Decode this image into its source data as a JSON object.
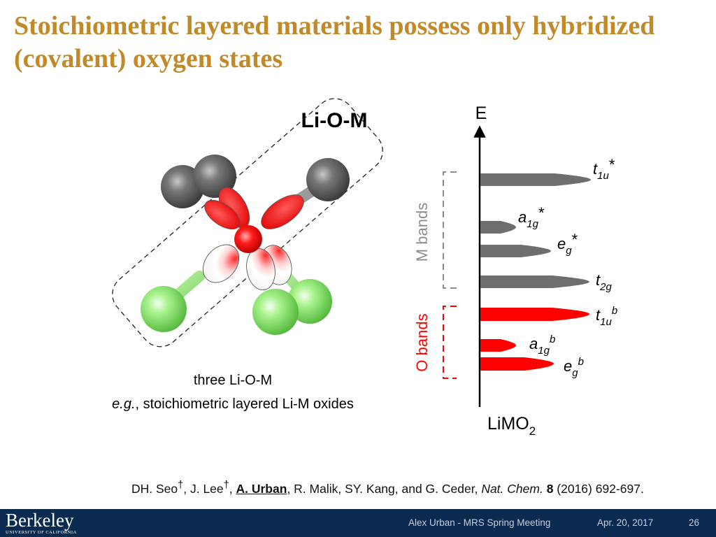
{
  "slide": {
    "title": "Stoichiometric layered materials possess only hybridized (covalent) oxygen states",
    "page_number": "26"
  },
  "structure": {
    "heading": "Li-O-M",
    "caption_line1": "three Li-O-M",
    "caption_line2_em": "e.g.",
    "caption_line2_rest": ", stoichiometric layered Li-M oxides"
  },
  "energy_diagram": {
    "axis_label": "E",
    "compound_base": "LiMO",
    "compound_sub": "2",
    "m_bands_label": "M bands",
    "o_bands_label": "O bands",
    "m_band_color": "#6e6e6e",
    "o_band_color": "#ff0000",
    "levels": [
      {
        "sym": "t",
        "sub": "1u",
        "sup": "*",
        "group": "M"
      },
      {
        "sym": "a",
        "sub": "1g",
        "sup": "*",
        "group": "M"
      },
      {
        "sym": "e",
        "sub": "g",
        "sup": "*",
        "group": "M"
      },
      {
        "sym": "t",
        "sub": "2g",
        "sup": "",
        "group": "M"
      },
      {
        "sym": "t",
        "sub": "1u",
        "sup": "b",
        "group": "O"
      },
      {
        "sym": "a",
        "sub": "1g",
        "sup": "b",
        "group": "O"
      },
      {
        "sym": "e",
        "sub": "g",
        "sup": "b",
        "group": "O"
      }
    ]
  },
  "citation": {
    "authors_pre": "DH. Seo",
    "dagger": "†",
    "author2": ", J. Lee",
    "sep": ", ",
    "highlight": "A. Urban",
    "authors_post": ", R. Malik, SY. Kang, and G. Ceder, ",
    "journal": "Nat. Chem.",
    "volume": "8",
    "rest": " (2016) 692-697."
  },
  "footer": {
    "logo_main": "Berkeley",
    "logo_sub": "UNIVERSITY OF CALIFORNIA",
    "presenter": "Alex Urban - MRS Spring Meeting",
    "date": "Apr. 20, 2017",
    "page": "26"
  }
}
